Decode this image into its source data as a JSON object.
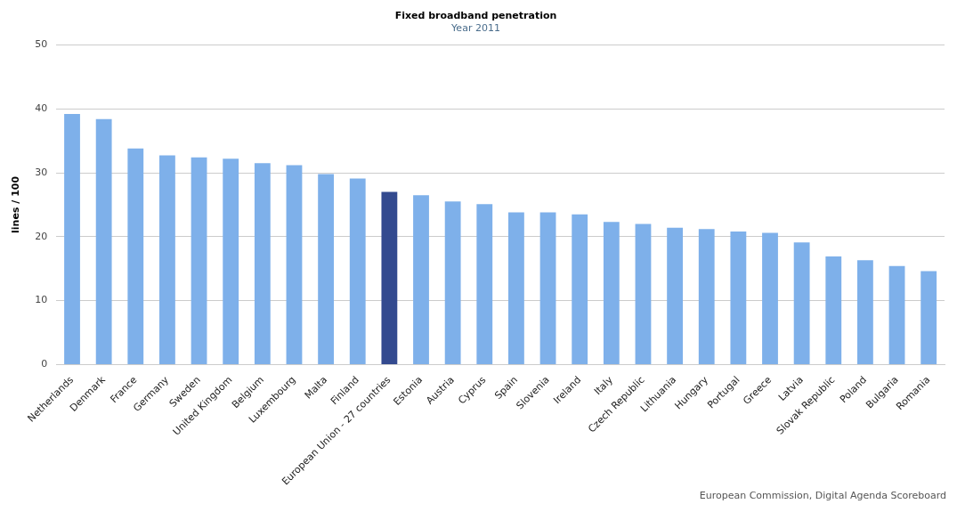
{
  "chart_data": {
    "type": "bar",
    "title": "Fixed broadband penetration",
    "subtitle": "Year 2011",
    "ylabel": "lines / 100",
    "categories": [
      "Netherlands",
      "Denmark",
      "France",
      "Germany",
      "Sweden",
      "United Kingdom",
      "Belgium",
      "Luxembourg",
      "Malta",
      "Finland",
      "European Union - 27 countries",
      "Estonia",
      "Austria",
      "Cyprus",
      "Spain",
      "Slovenia",
      "Ireland",
      "Italy",
      "Czech Republic",
      "Lithuania",
      "Hungary",
      "Portugal",
      "Greece",
      "Latvia",
      "Slovak Republic",
      "Poland",
      "Bulgaria",
      "Romania"
    ],
    "values": [
      39.2,
      38.4,
      33.8,
      32.7,
      32.4,
      32.2,
      31.5,
      31.2,
      29.8,
      29.1,
      27.0,
      26.5,
      25.5,
      25.1,
      23.8,
      23.8,
      23.5,
      22.3,
      22.0,
      21.4,
      21.2,
      20.8,
      20.6,
      19.1,
      16.9,
      16.3,
      15.4,
      14.6
    ],
    "colors": [
      "#7eb0ea",
      "#7eb0ea",
      "#7eb0ea",
      "#7eb0ea",
      "#7eb0ea",
      "#7eb0ea",
      "#7eb0ea",
      "#7eb0ea",
      "#7eb0ea",
      "#7eb0ea",
      "#334a8f",
      "#7eb0ea",
      "#7eb0ea",
      "#7eb0ea",
      "#7eb0ea",
      "#7eb0ea",
      "#7eb0ea",
      "#7eb0ea",
      "#7eb0ea",
      "#7eb0ea",
      "#7eb0ea",
      "#7eb0ea",
      "#7eb0ea",
      "#7eb0ea",
      "#7eb0ea",
      "#7eb0ea",
      "#7eb0ea",
      "#7eb0ea"
    ],
    "ylim": [
      0,
      50
    ],
    "yticks": [
      0,
      10,
      20,
      30,
      40,
      50
    ],
    "grid": "y",
    "legend": false,
    "annotations": [
      "European Commission, Digital Agenda Scoreboard"
    ]
  }
}
